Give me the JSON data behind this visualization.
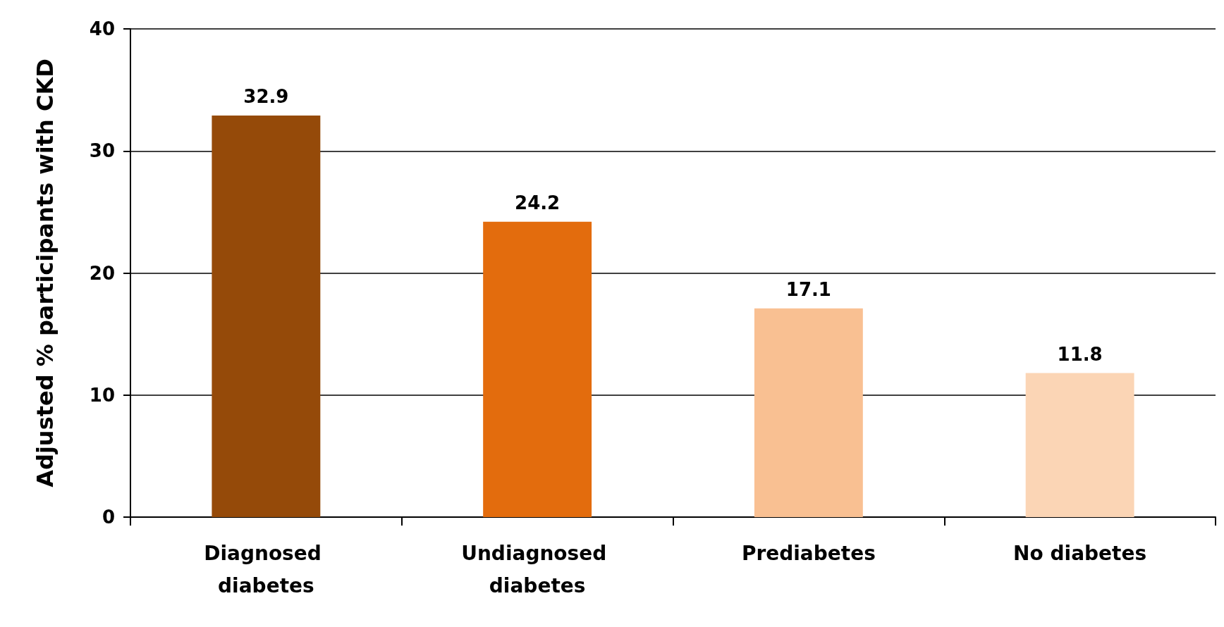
{
  "chart_data": {
    "type": "bar",
    "ylabel": "Adjusted % participants with CKD",
    "categories": [
      "Diagnosed diabetes",
      "Undiagnosed diabetes",
      "Prediabetes",
      "No diabetes"
    ],
    "values": [
      32.9,
      24.2,
      17.1,
      11.8
    ],
    "colors": [
      "#954a09",
      "#e36c0d",
      "#f9c092",
      "#fbd5b5"
    ],
    "ylim": [
      0,
      40
    ],
    "yticks": [
      0,
      10,
      20,
      30,
      40
    ],
    "grid": "y",
    "data_labels": true
  }
}
